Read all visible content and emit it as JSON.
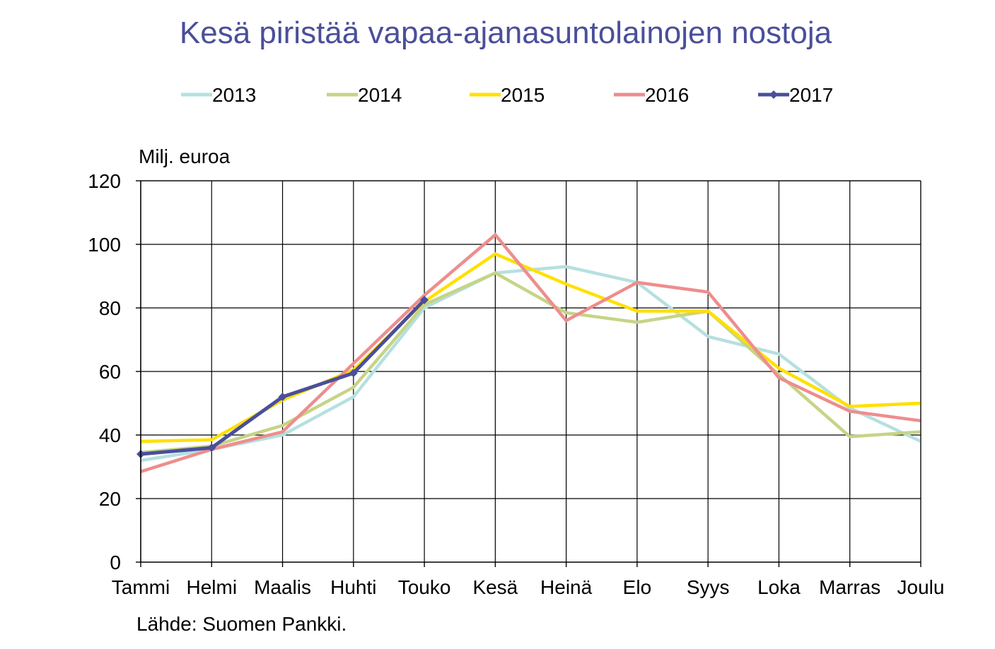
{
  "title": "Kesä piristää vapaa-ajanasuntolainojen nostoja",
  "unit_label": "Milj. euroa",
  "source": "Lähde: Suomen Pankki.",
  "chart_data": {
    "type": "line",
    "title": "Kesä piristää vapaa-ajanasuntolainojen nostoja",
    "ylabel": "Milj. euroa",
    "xlabel": "",
    "ylim": [
      0,
      120
    ],
    "yticks": [
      0,
      20,
      40,
      60,
      80,
      100,
      120
    ],
    "grid": true,
    "legend_position": "top",
    "categories": [
      "Tammi",
      "Helmi",
      "Maalis",
      "Huhti",
      "Touko",
      "Kesä",
      "Heinä",
      "Elo",
      "Syys",
      "Loka",
      "Marras",
      "Joulu"
    ],
    "series": [
      {
        "name": "2013",
        "color": "#b5e0e0",
        "marker": false,
        "values": [
          32,
          35.5,
          40,
          52,
          80,
          91,
          93,
          88,
          71,
          65.5,
          48.5,
          38
        ]
      },
      {
        "name": "2014",
        "color": "#c5d486",
        "marker": false,
        "values": [
          34.5,
          36.5,
          43,
          55,
          81,
          91,
          78.5,
          75.5,
          79,
          59,
          39.5,
          41
        ]
      },
      {
        "name": "2015",
        "color": "#ffe000",
        "marker": false,
        "values": [
          38,
          38.5,
          51,
          60.5,
          82,
          97,
          87.5,
          79,
          79,
          61,
          49,
          50
        ]
      },
      {
        "name": "2016",
        "color": "#ee8d8d",
        "marker": false,
        "values": [
          28.5,
          35.5,
          41,
          62.5,
          84,
          103,
          76,
          88,
          85,
          58,
          47.5,
          44.5
        ]
      },
      {
        "name": "2017",
        "color": "#4a4f9a",
        "marker": true,
        "values": [
          34,
          36,
          52,
          59.5,
          82.5,
          null,
          null,
          null,
          null,
          null,
          null,
          null
        ]
      }
    ]
  }
}
